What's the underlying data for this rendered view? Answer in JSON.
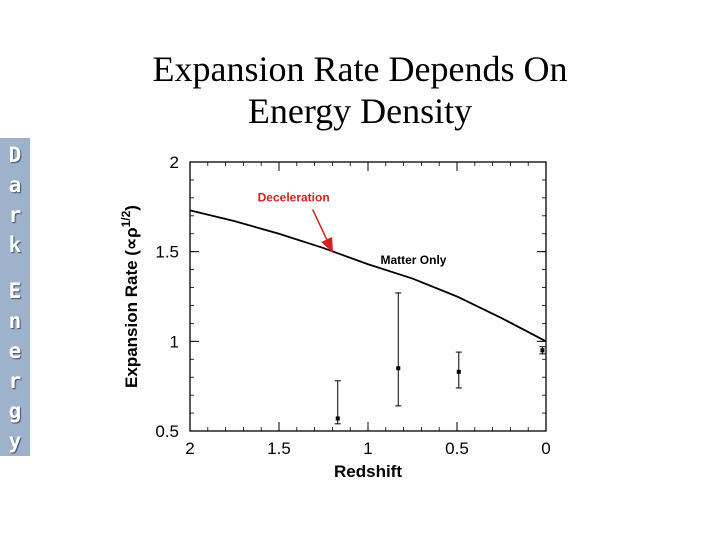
{
  "sidebar": {
    "text": "Dark Energy"
  },
  "slide": {
    "title_line1": "Expansion Rate Depends On",
    "title_line2": "Energy Density"
  },
  "chart_data": {
    "type": "line",
    "xlabel": "Redshift",
    "ylabel": "Expansion Rate (∝ρ",
    "ylabel_sup": "1/2",
    "ylabel_end": ")",
    "xlim": [
      2,
      0
    ],
    "ylim": [
      0.5,
      2
    ],
    "x_ticks": [
      {
        "value": 2,
        "label": "2"
      },
      {
        "value": 1.5,
        "label": "1.5"
      },
      {
        "value": 1,
        "label": "1"
      },
      {
        "value": 0.5,
        "label": "0.5"
      },
      {
        "value": 0,
        "label": "0"
      }
    ],
    "y_ticks": [
      {
        "value": 2,
        "label": "2"
      },
      {
        "value": 1.5,
        "label": "1.5"
      },
      {
        "value": 1,
        "label": "1"
      },
      {
        "value": 0.5,
        "label": "0.5"
      }
    ],
    "series": [
      {
        "name": "Matter Only",
        "x": [
          2.0,
          1.75,
          1.5,
          1.25,
          1.0,
          0.75,
          0.5,
          0.25,
          0.0
        ],
        "y": [
          1.73,
          1.67,
          1.6,
          1.52,
          1.43,
          1.35,
          1.25,
          1.13,
          1.0
        ]
      }
    ],
    "points": [
      {
        "x": 1.17,
        "y": 0.57,
        "ylow": 0.54,
        "yhigh": 0.78
      },
      {
        "x": 0.83,
        "y": 0.85,
        "ylow": 0.64,
        "yhigh": 1.27
      },
      {
        "x": 0.49,
        "y": 0.83,
        "ylow": 0.74,
        "yhigh": 0.94
      },
      {
        "x": 0.02,
        "y": 0.95,
        "ylow": 0.93,
        "yhigh": 0.97
      }
    ],
    "annotations": [
      {
        "text": "Deceleration",
        "color": "#d42020",
        "x": 1.62,
        "y": 1.78,
        "arrow_to": [
          1.2,
          1.5
        ]
      },
      {
        "text": "Matter Only",
        "color": "#000000",
        "x": 0.93,
        "y": 1.43
      }
    ]
  }
}
